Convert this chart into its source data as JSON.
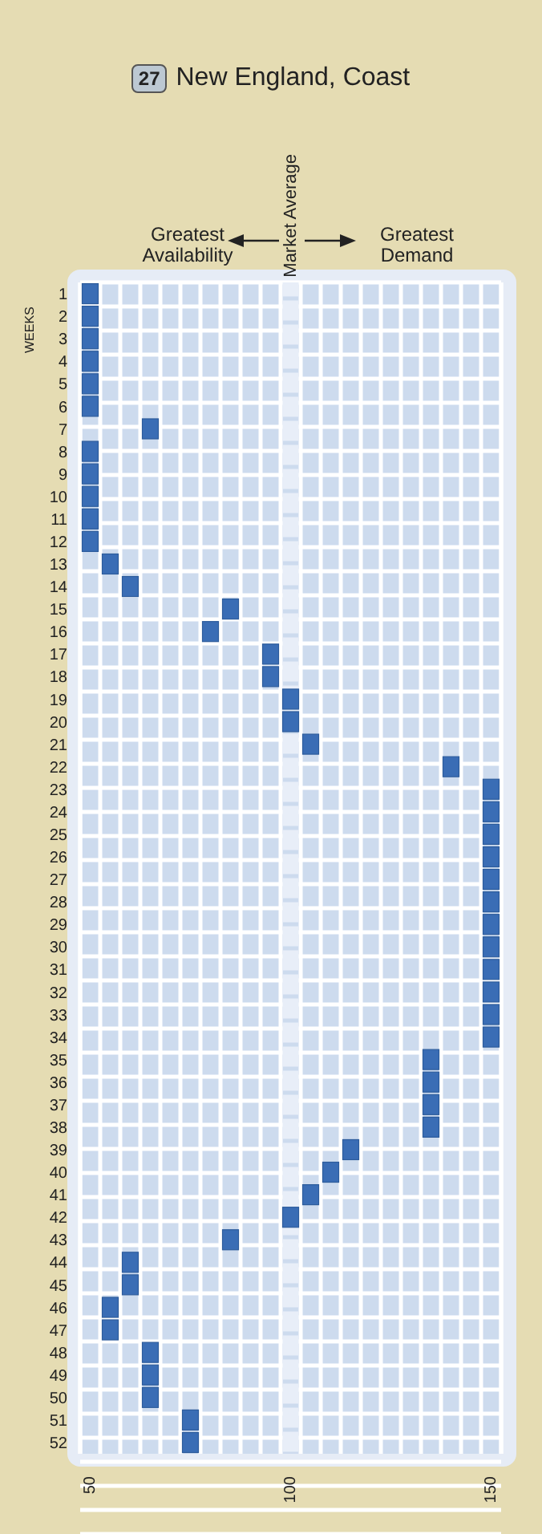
{
  "chart_data": {
    "type": "scatter",
    "title": "New England, Coast",
    "ylabel": "WEEKS",
    "orientation": "horizontal",
    "annotations": [
      "27",
      "Greatest Availability",
      "Greatest Demand"
    ],
    "categories": [
      "1",
      "2",
      "3",
      "4",
      "5",
      "6",
      "7",
      "8",
      "9",
      "10",
      "11",
      "12",
      "13",
      "14",
      "15",
      "16",
      "17",
      "18",
      "19",
      "20",
      "21",
      "22",
      "23",
      "24",
      "25",
      "26",
      "27",
      "28",
      "29",
      "30",
      "31",
      "32",
      "33",
      "34",
      "35",
      "36",
      "37",
      "38",
      "39",
      "40",
      "41",
      "42",
      "43",
      "44",
      "45",
      "46",
      "47",
      "48",
      "49",
      "50",
      "51",
      "52"
    ],
    "values": [
      50,
      50,
      50,
      50,
      50,
      50,
      65,
      50,
      50,
      50,
      50,
      50,
      55,
      60,
      85,
      80,
      95,
      95,
      100,
      100,
      105,
      140,
      150,
      150,
      150,
      150,
      150,
      150,
      150,
      150,
      150,
      150,
      150,
      150,
      135,
      135,
      135,
      135,
      115,
      110,
      105,
      100,
      85,
      60,
      60,
      55,
      55,
      65,
      65,
      65,
      75,
      75
    ],
    "color": "#3a6db5",
    "marker": "square",
    "xlim": [
      47.5,
      152.5
    ],
    "xticks": [
      50,
      100,
      150
    ],
    "ref_lines": [
      {
        "axis": "x",
        "value": 100,
        "label": "Market Average",
        "color": "#e8eef8"
      }
    ],
    "grid": true
  }
}
